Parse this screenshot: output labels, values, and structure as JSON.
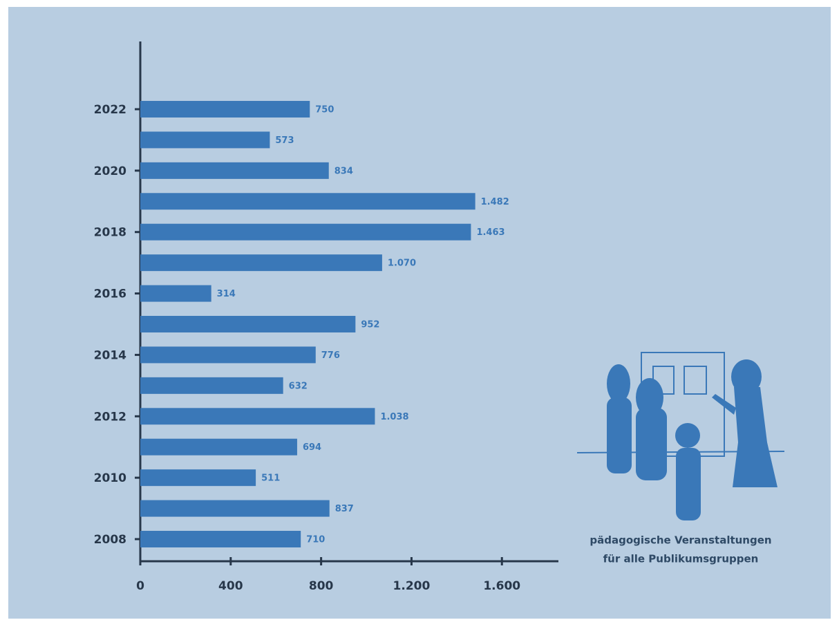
{
  "chart_data": {
    "type": "bar",
    "orientation": "horizontal",
    "categories": [
      "2008",
      null,
      "2010",
      null,
      "2012",
      null,
      "2014",
      null,
      "2016",
      null,
      "2018",
      null,
      "2020",
      null,
      "2022"
    ],
    "values": [
      710,
      837,
      511,
      694,
      1038,
      632,
      776,
      952,
      314,
      1070,
      1463,
      1482,
      834,
      573,
      750
    ],
    "value_labels": [
      "710",
      "837",
      "511",
      "694",
      "1.038",
      "632",
      "776",
      "952",
      "314",
      "1.070",
      "1.463",
      "1.482",
      "834",
      "573",
      "750"
    ],
    "color": "#3a78b8",
    "xlim": [
      0,
      1850
    ],
    "xticks": [
      0,
      400,
      800,
      {
        "value": 1200,
        "label": "1.200"
      },
      {
        "value": 1600,
        "label": "1.600"
      }
    ],
    "grid": false,
    "caption": [
      "pädagogische Veranstaltungen",
      "für alle Publikumsgruppen"
    ]
  }
}
